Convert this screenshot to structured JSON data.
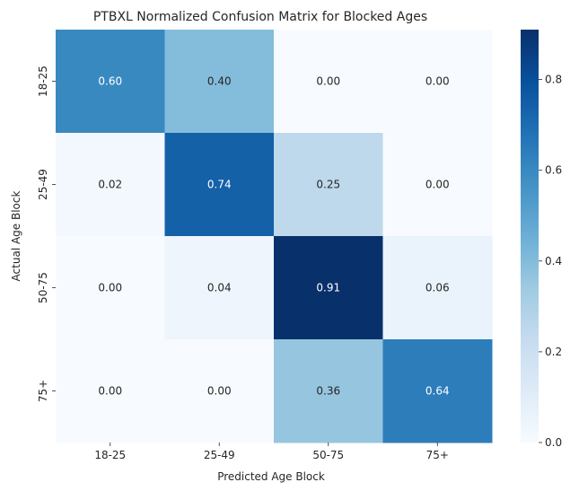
{
  "chart_data": {
    "type": "heatmap",
    "title": "PTBXL Normalized Confusion Matrix for Blocked Ages",
    "xlabel": "Predicted Age Block",
    "ylabel": "Actual Age Block",
    "x_categories": [
      "18-25",
      "25-49",
      "50-75",
      "75+"
    ],
    "y_categories": [
      "18-25",
      "25-49",
      "50-75",
      "75+"
    ],
    "values": [
      [
        0.6,
        0.4,
        0.0,
        0.0
      ],
      [
        0.02,
        0.74,
        0.25,
        0.0
      ],
      [
        0.0,
        0.04,
        0.91,
        0.06
      ],
      [
        0.0,
        0.0,
        0.36,
        0.64
      ]
    ],
    "value_labels": [
      [
        "0.60",
        "0.40",
        "0.00",
        "0.00"
      ],
      [
        "0.02",
        "0.74",
        "0.25",
        "0.00"
      ],
      [
        "0.00",
        "0.04",
        "0.91",
        "0.06"
      ],
      [
        "0.00",
        "0.00",
        "0.36",
        "0.64"
      ]
    ],
    "colormap": "Blues",
    "colorbar": {
      "range": [
        0,
        0.91
      ],
      "ticks": [
        0.0,
        0.2,
        0.4,
        0.6,
        0.8
      ],
      "tick_labels": [
        "0.0",
        "0.2",
        "0.4",
        "0.6",
        "0.8"
      ]
    },
    "grid": false
  }
}
